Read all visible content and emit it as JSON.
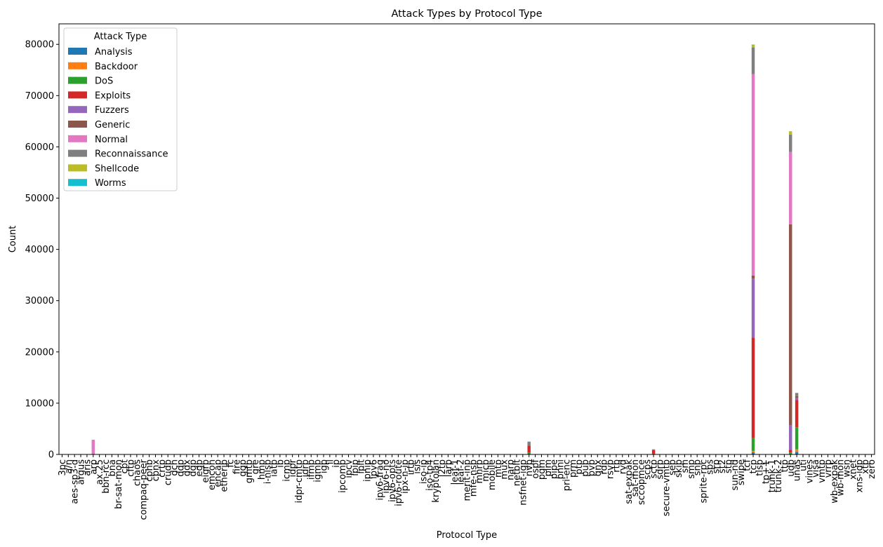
{
  "chart_data": {
    "type": "bar",
    "stacked": true,
    "title": "Attack Types by Protocol Type",
    "xlabel": "Protocol Type",
    "ylabel": "Count",
    "ylim": [
      0,
      84000
    ],
    "yticks": [
      0,
      10000,
      20000,
      30000,
      40000,
      50000,
      60000,
      70000,
      80000
    ],
    "grid": false,
    "legend_title": "Attack Type",
    "legend_position": "top-left",
    "categories": [
      "3pc",
      "a/n",
      "aes-sp3-d",
      "argus",
      "aris",
      "arp",
      "ax.25",
      "bbn-rcc",
      "bna",
      "br-sat-mon",
      "cbt",
      "cftp",
      "chaos",
      "compaq-peer",
      "cphb",
      "cpnx",
      "crtp",
      "crudp",
      "dcn",
      "ddp",
      "ddx",
      "dgp",
      "egp",
      "eigrp",
      "emcon",
      "encap",
      "etherip",
      "fc",
      "fire",
      "ggp",
      "gmtp",
      "gre",
      "hmp",
      "i-nlsp",
      "iatp",
      "ib",
      "icmp",
      "idpr",
      "idpr-cmtp",
      "idrp",
      "ifmp",
      "igmp",
      "igp",
      "il",
      "ip",
      "ipcomp",
      "ipcv",
      "ipip",
      "iplt",
      "ipnip",
      "ipv6",
      "ipv6-frag",
      "ipv6-no",
      "ipv6-opts",
      "ipv6-route",
      "ipx-n-ip",
      "irtp",
      "isis",
      "iso-ip",
      "iso-tp4",
      "kryptolan",
      "l2tp",
      "larp",
      "leaf-1",
      "leaf-2",
      "merit-inp",
      "mfe-nsp",
      "mhrp",
      "micp",
      "mobile",
      "mtp",
      "mux",
      "narp",
      "netblt",
      "nsfnet-igp",
      "nvp",
      "ospf",
      "pgm",
      "pim",
      "pipe",
      "pnni",
      "pri-enc",
      "prm",
      "ptp",
      "pup",
      "pvp",
      "qnx",
      "rdp",
      "rsvp",
      "rtp",
      "rvd",
      "sat-expak",
      "sat-mon",
      "sccopmce",
      "scps",
      "sctp",
      "sdrp",
      "secure-vmtp",
      "sep",
      "skip",
      "sm",
      "smp",
      "snp",
      "sprite-rpc",
      "sps",
      "srp",
      "st2",
      "stp",
      "sun-nd",
      "swipe",
      "tcf",
      "tcp",
      "tlsp",
      "tp++",
      "trunk-1",
      "trunk-2",
      "ttp",
      "udp",
      "unas",
      "uti",
      "vines",
      "visa",
      "vmtp",
      "vrrp",
      "wb-expak",
      "wb-mon",
      "wsn",
      "xnet",
      "xns-idp",
      "xtp",
      "zero"
    ],
    "series": [
      {
        "name": "Analysis",
        "color": "#1f77b4",
        "values": {
          "tcp": 400,
          "unas": 500
        }
      },
      {
        "name": "Backdoor",
        "color": "#ff7f0e",
        "values": {
          "tcp": 300,
          "unas": 500
        }
      },
      {
        "name": "DoS",
        "color": "#2ca02c",
        "values": {
          "nvp": 400,
          "sctp": 150,
          "tcp": 2500,
          "udp": 400,
          "unas": 4300
        }
      },
      {
        "name": "Exploits",
        "color": "#d62728",
        "values": {
          "argus": 70,
          "nvp": 1300,
          "sctp": 700,
          "tcp": 19600,
          "udp": 500,
          "unas": 5300
        }
      },
      {
        "name": "Fuzzers",
        "color": "#9467bd",
        "values": {
          "tcp": 11500,
          "udp": 4800,
          "unas": 400
        }
      },
      {
        "name": "Generic",
        "color": "#8c564b",
        "values": {
          "tcp": 600,
          "udp": 39200,
          "unas": 400
        }
      },
      {
        "name": "Normal",
        "color": "#e377c2",
        "values": {
          "arp": 2860,
          "ospf": 30,
          "tcp": 39300,
          "udp": 14100
        }
      },
      {
        "name": "Reconnaissance",
        "color": "#7f7f7f",
        "values": {
          "nvp": 800,
          "sctp": 150,
          "tcp": 5200,
          "udp": 3400,
          "unas": 600
        }
      },
      {
        "name": "Shellcode",
        "color": "#bcbd22",
        "values": {
          "tcp": 500,
          "udp": 600
        }
      },
      {
        "name": "Worms",
        "color": "#17becf",
        "values": {
          "tcp": 50,
          "udp": 20
        }
      }
    ]
  }
}
